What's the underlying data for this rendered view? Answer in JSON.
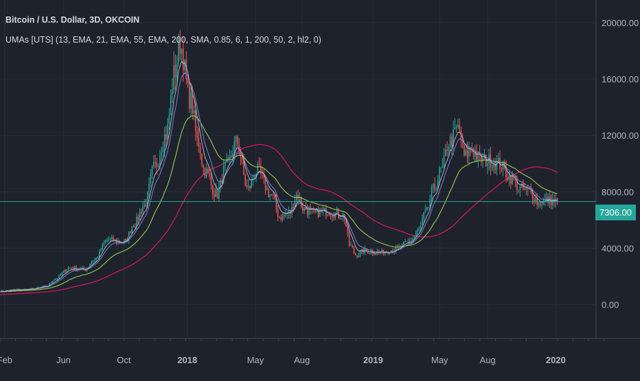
{
  "header": {
    "symbol_line": "Bitcoin / U.S. Dollar, 3D, OKCOIN",
    "indicator_line": "UMAs [UTS] (13, EMA, 21, EMA, 55, EMA, 200, SMA, 0.85, 6, 1, 200, 50, 2, hl2, 0)"
  },
  "last_price_label": "7306.00",
  "chart_data": {
    "type": "line",
    "ylim": [
      -2400,
      21600
    ],
    "y_ticks": [
      "0.00",
      "4000.00",
      "8000.00",
      "12000.00",
      "16000.00",
      "20000.00"
    ],
    "y_tick_values": [
      0,
      4000,
      8000,
      12000,
      16000,
      20000
    ],
    "x_ticks": [
      "Feb",
      "Jun",
      "Oct",
      "2018",
      "May",
      "Aug",
      "2019",
      "May",
      "Aug",
      "2020"
    ],
    "x_tick_positions": [
      0.3,
      4.1,
      8.0,
      12.1,
      16.5,
      19.5,
      24.1,
      28.4,
      31.5,
      35.9
    ],
    "x_unit": "months since Jan 2017",
    "last_price": 7306,
    "colors": {
      "up": "#26a69a",
      "down": "#ef5350",
      "ema13": "#b2b5be",
      "ema21": "#6e7fc7",
      "ema55": "#8bc34a",
      "sma200": "#c2185b",
      "price_line": "#26a69a",
      "grid": "#2a2e39",
      "text": "#b2b5be"
    },
    "price_key_points": {
      "x": [
        0.0,
        1.0,
        2.0,
        3.0,
        3.5,
        4.5,
        5.5,
        6.0,
        7.0,
        8.0,
        8.7,
        9.3,
        10.0,
        10.7,
        11.3,
        11.6,
        12.3,
        12.8,
        13.2,
        14.0,
        14.6,
        15.3,
        16.0,
        16.6,
        17.5,
        18.1,
        18.7,
        19.2,
        19.6,
        20.2,
        21.0,
        22.2,
        22.6,
        23.0,
        23.5,
        24.5,
        25.5,
        26.5,
        27.0,
        27.5,
        28.0,
        28.5,
        29.0,
        29.6,
        30.0,
        30.4,
        31.0,
        31.5,
        32.2,
        33.0,
        33.6,
        34.2,
        34.8,
        35.4,
        36.0
      ],
      "y": [
        950,
        1050,
        1100,
        1300,
        1800,
        2600,
        2500,
        3100,
        4600,
        4400,
        5800,
        7000,
        9800,
        12000,
        16500,
        18500,
        14500,
        11500,
        9500,
        7800,
        9800,
        11500,
        8200,
        9500,
        7800,
        6200,
        6500,
        7800,
        6800,
        6500,
        6600,
        6300,
        4200,
        3500,
        3800,
        3700,
        3900,
        4500,
        5200,
        6500,
        8200,
        9500,
        11500,
        12500,
        10500,
        11000,
        10300,
        10200,
        10000,
        9000,
        8200,
        8000,
        7200,
        7400,
        7306
      ]
    }
  }
}
